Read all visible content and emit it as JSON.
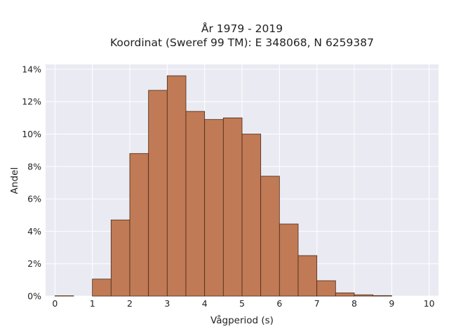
{
  "chart_data": {
    "type": "bar",
    "title": "År 1979 - 2019",
    "subtitle": "Koordinat (Sweref 99 TM): E 348068, N 6259387",
    "xlabel": "Vågperiod (s)",
    "ylabel": "Andel",
    "bin_edges": [
      0,
      0.5,
      1,
      1.5,
      2,
      2.5,
      3,
      3.5,
      4,
      4.5,
      5,
      5.5,
      6,
      6.5,
      7,
      7.5,
      8,
      8.5,
      9,
      9.5,
      10
    ],
    "values": [
      0.02,
      0,
      1.05,
      4.7,
      8.8,
      12.7,
      13.6,
      11.4,
      10.9,
      11.0,
      10.0,
      7.4,
      4.45,
      2.5,
      0.95,
      0.2,
      0.08,
      0.03,
      0,
      0
    ],
    "xlim": [
      -0.25,
      10.25
    ],
    "ylim": [
      0,
      14.3
    ],
    "x_ticks": [
      0,
      1,
      2,
      3,
      4,
      5,
      6,
      7,
      8,
      9,
      10
    ],
    "y_ticks": [
      0,
      2,
      4,
      6,
      8,
      10,
      12,
      14
    ],
    "y_tick_labels": [
      "0%",
      "2%",
      "4%",
      "6%",
      "8%",
      "10%",
      "12%",
      "14%"
    ],
    "grid": true,
    "colors": {
      "bar_fill": "#c07a55",
      "bar_edge": "#4a2a18",
      "plot_bg": "#eaeaf2",
      "grid": "#ffffff"
    }
  }
}
